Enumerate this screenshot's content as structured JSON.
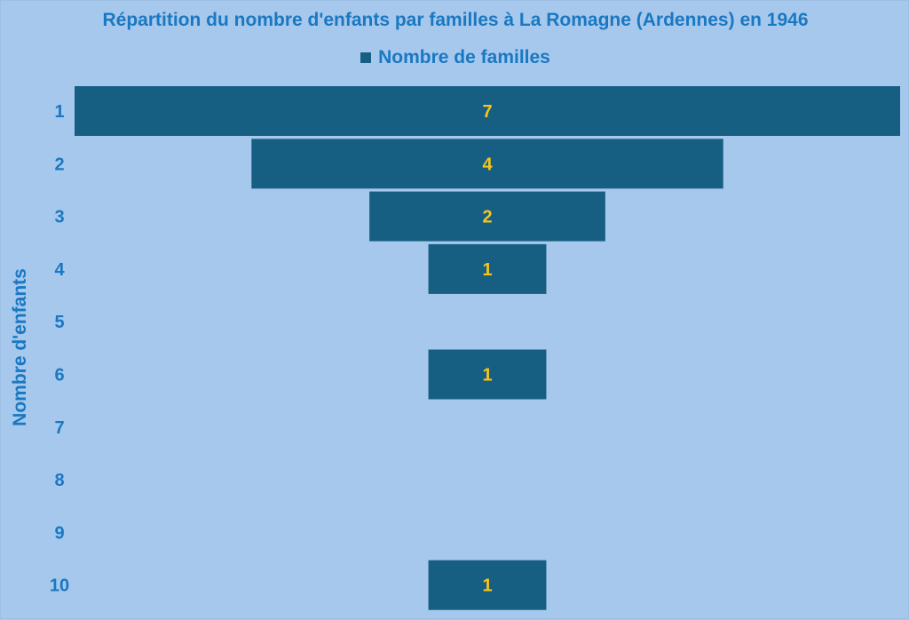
{
  "chart_data": {
    "type": "bar",
    "orientation": "horizontal-funnel",
    "title": "Répartition du nombre d'enfants par familles à La Romagne (Ardennes) en 1946",
    "ylabel": "Nombre d'enfants",
    "xlabel": "",
    "categories": [
      "1",
      "2",
      "3",
      "4",
      "5",
      "6",
      "7",
      "8",
      "9",
      "10"
    ],
    "series": [
      {
        "name": "Nombre de familles",
        "values": [
          7,
          4,
          2,
          1,
          0,
          1,
          0,
          0,
          0,
          1
        ]
      }
    ],
    "data_labels": [
      "7",
      "4",
      "2",
      "1",
      "",
      "1",
      "",
      "",
      "",
      "1"
    ],
    "xlim": [
      0,
      7
    ],
    "grid": false,
    "legend_position": "top"
  },
  "colors": {
    "background": "#a6c8ec",
    "bar": "#175f82",
    "text": "#1a78c2",
    "data_label": "#f7c51a"
  }
}
